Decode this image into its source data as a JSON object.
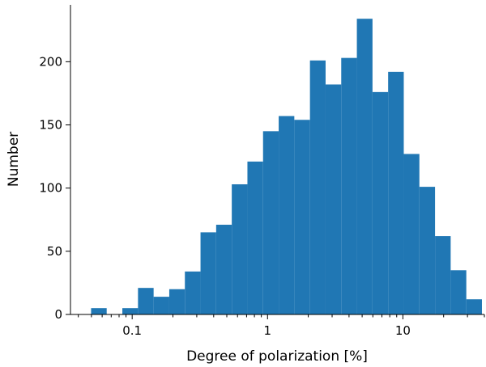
{
  "chart_data": {
    "type": "bar",
    "xscale": "log",
    "xlabel": "Degree of polarization [%]",
    "ylabel": "Number",
    "xlim": [
      0.035,
      40
    ],
    "ylim": [
      0,
      245
    ],
    "x_ticks": [
      {
        "value": 0.1,
        "label": "0.1"
      },
      {
        "value": 1,
        "label": "1"
      },
      {
        "value": 10,
        "label": "10"
      }
    ],
    "y_ticks": [
      {
        "value": 0,
        "label": "0"
      },
      {
        "value": 50,
        "label": "50"
      },
      {
        "value": 100,
        "label": "100"
      },
      {
        "value": 150,
        "label": "150"
      },
      {
        "value": 200,
        "label": "200"
      }
    ],
    "bin_edges": [
      0.0497,
      0.0648,
      0.0846,
      0.1104,
      0.144,
      0.1879,
      0.2451,
      0.3198,
      0.4172,
      0.5443,
      0.7102,
      0.9266,
      1.209,
      1.577,
      2.058,
      2.685,
      3.503,
      4.57,
      5.963,
      7.78,
      10.15,
      13.24,
      17.28,
      22.54,
      29.41,
      38.37
    ],
    "values": [
      5,
      0,
      5,
      21,
      14,
      20,
      34,
      65,
      71,
      103,
      121,
      145,
      157,
      154,
      201,
      182,
      203,
      234,
      176,
      192,
      127,
      101,
      62,
      35,
      12
    ],
    "bar_color": "#2077b4",
    "grid": false
  }
}
